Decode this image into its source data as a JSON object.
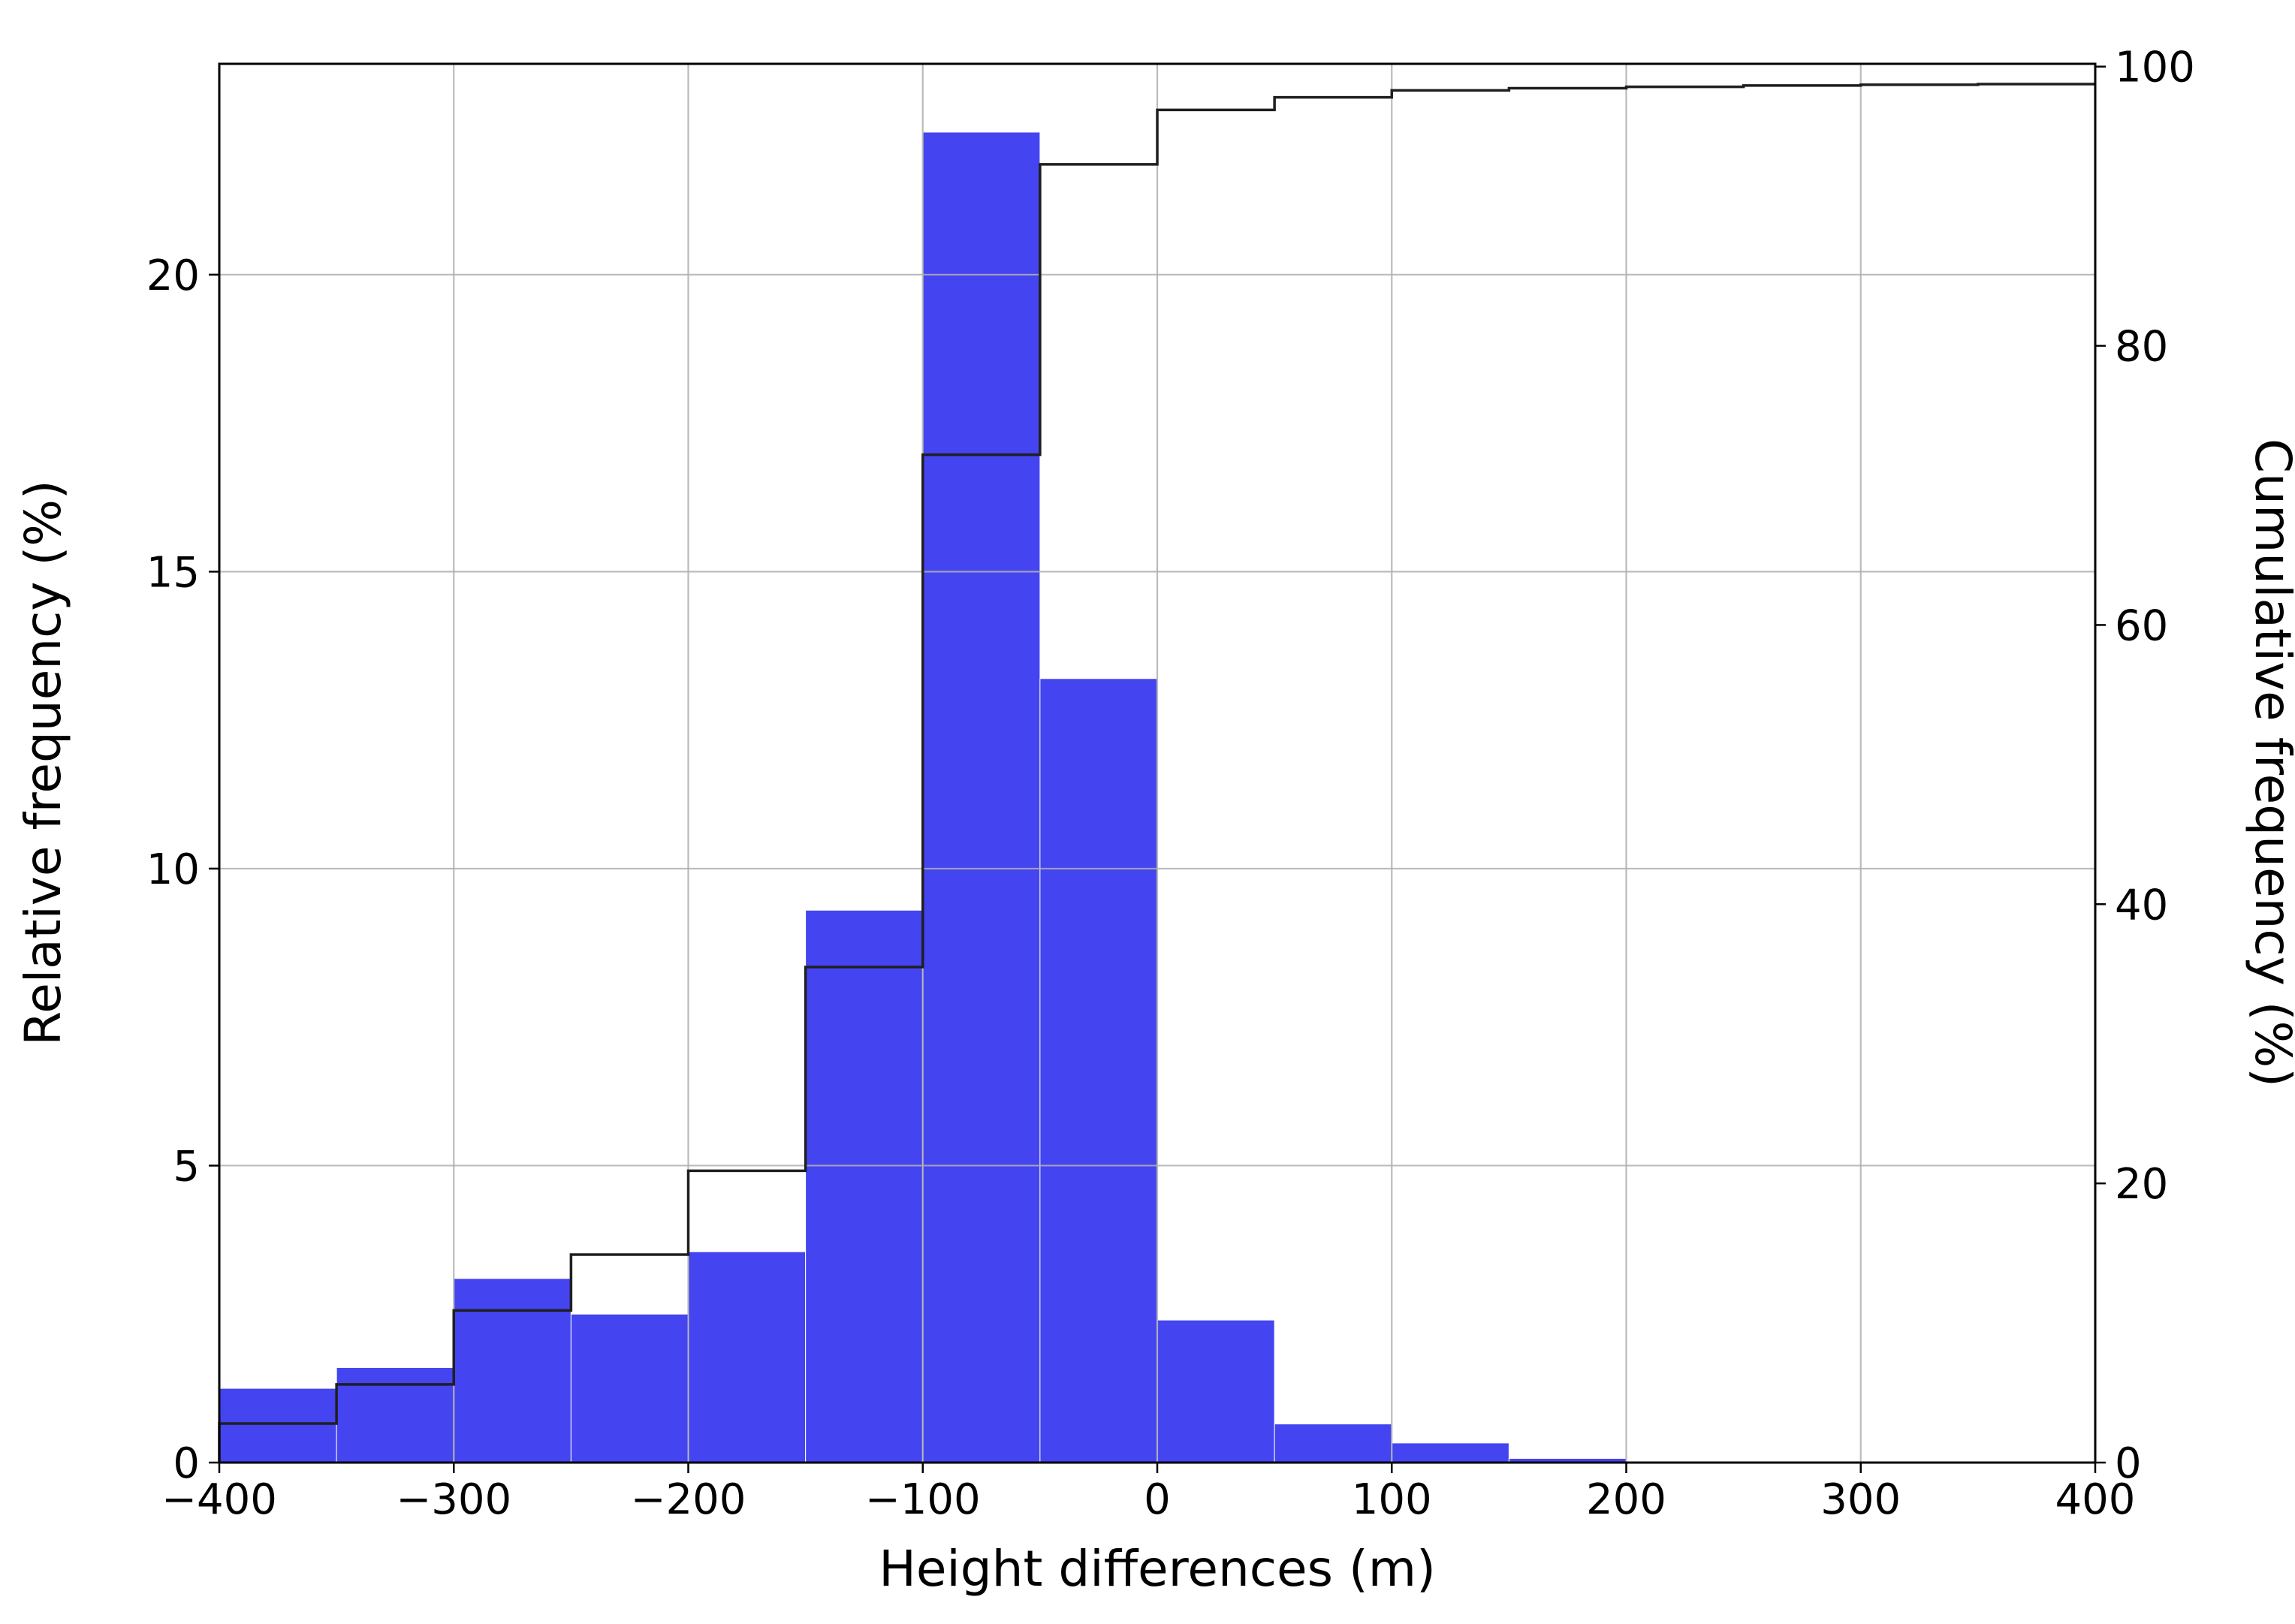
{
  "figure": {
    "background": "#ffffff"
  },
  "chart_data": {
    "type": "bar",
    "subtype": "histogram_with_cumulative_step",
    "title": "",
    "xlabel": "Height differences (m)",
    "ylabel": "Relative frequency (%)",
    "ylabel_right": "Cumulative frequency (%)",
    "xlim": [
      -400,
      400
    ],
    "ylim": [
      0,
      23.55
    ],
    "ylim_right": [
      0,
      100.2
    ],
    "x_tick_values": [
      -400,
      -300,
      -200,
      -100,
      0,
      100,
      200,
      300,
      400
    ],
    "x_tick_labels": [
      "−400",
      "−300",
      "−200",
      "−100",
      "0",
      "100",
      "200",
      "300",
      "400"
    ],
    "y_tick_values_left": [
      0,
      5,
      10,
      15,
      20
    ],
    "y_tick_labels_left": [
      "0",
      "5",
      "10",
      "15",
      "20"
    ],
    "y_tick_values_right": [
      0,
      20,
      40,
      60,
      80,
      100
    ],
    "y_tick_labels_right": [
      "0",
      "20",
      "40",
      "60",
      "80",
      "100"
    ],
    "grid": true,
    "legend": false,
    "bin_edges": [
      -400,
      -350,
      -300,
      -250,
      -200,
      -150,
      -100,
      -50,
      0,
      50,
      100,
      150,
      200,
      250,
      300,
      350,
      400
    ],
    "series": [
      {
        "name": "Relative frequency",
        "kind": "bar",
        "axis": "left",
        "values": [
          1.25,
          1.6,
          3.1,
          2.5,
          3.55,
          9.3,
          22.4,
          13.2,
          2.4,
          0.65,
          0.33,
          0.07,
          0.02,
          0.01,
          0.01,
          0.01
        ]
      },
      {
        "name": "Cumulative frequency",
        "kind": "step",
        "axis": "right",
        "values": [
          2.8,
          5.6,
          10.9,
          14.9,
          20.9,
          35.5,
          72.2,
          93.0,
          96.9,
          97.8,
          98.3,
          98.45,
          98.55,
          98.65,
          98.7,
          98.75
        ]
      }
    ],
    "colors": {
      "bar": "#4444f0",
      "bar_edge": "#ffffff",
      "step_line": "#1f1f1f",
      "grid": "#b0b0b0",
      "axis": "#000000",
      "text": "#000000"
    }
  }
}
